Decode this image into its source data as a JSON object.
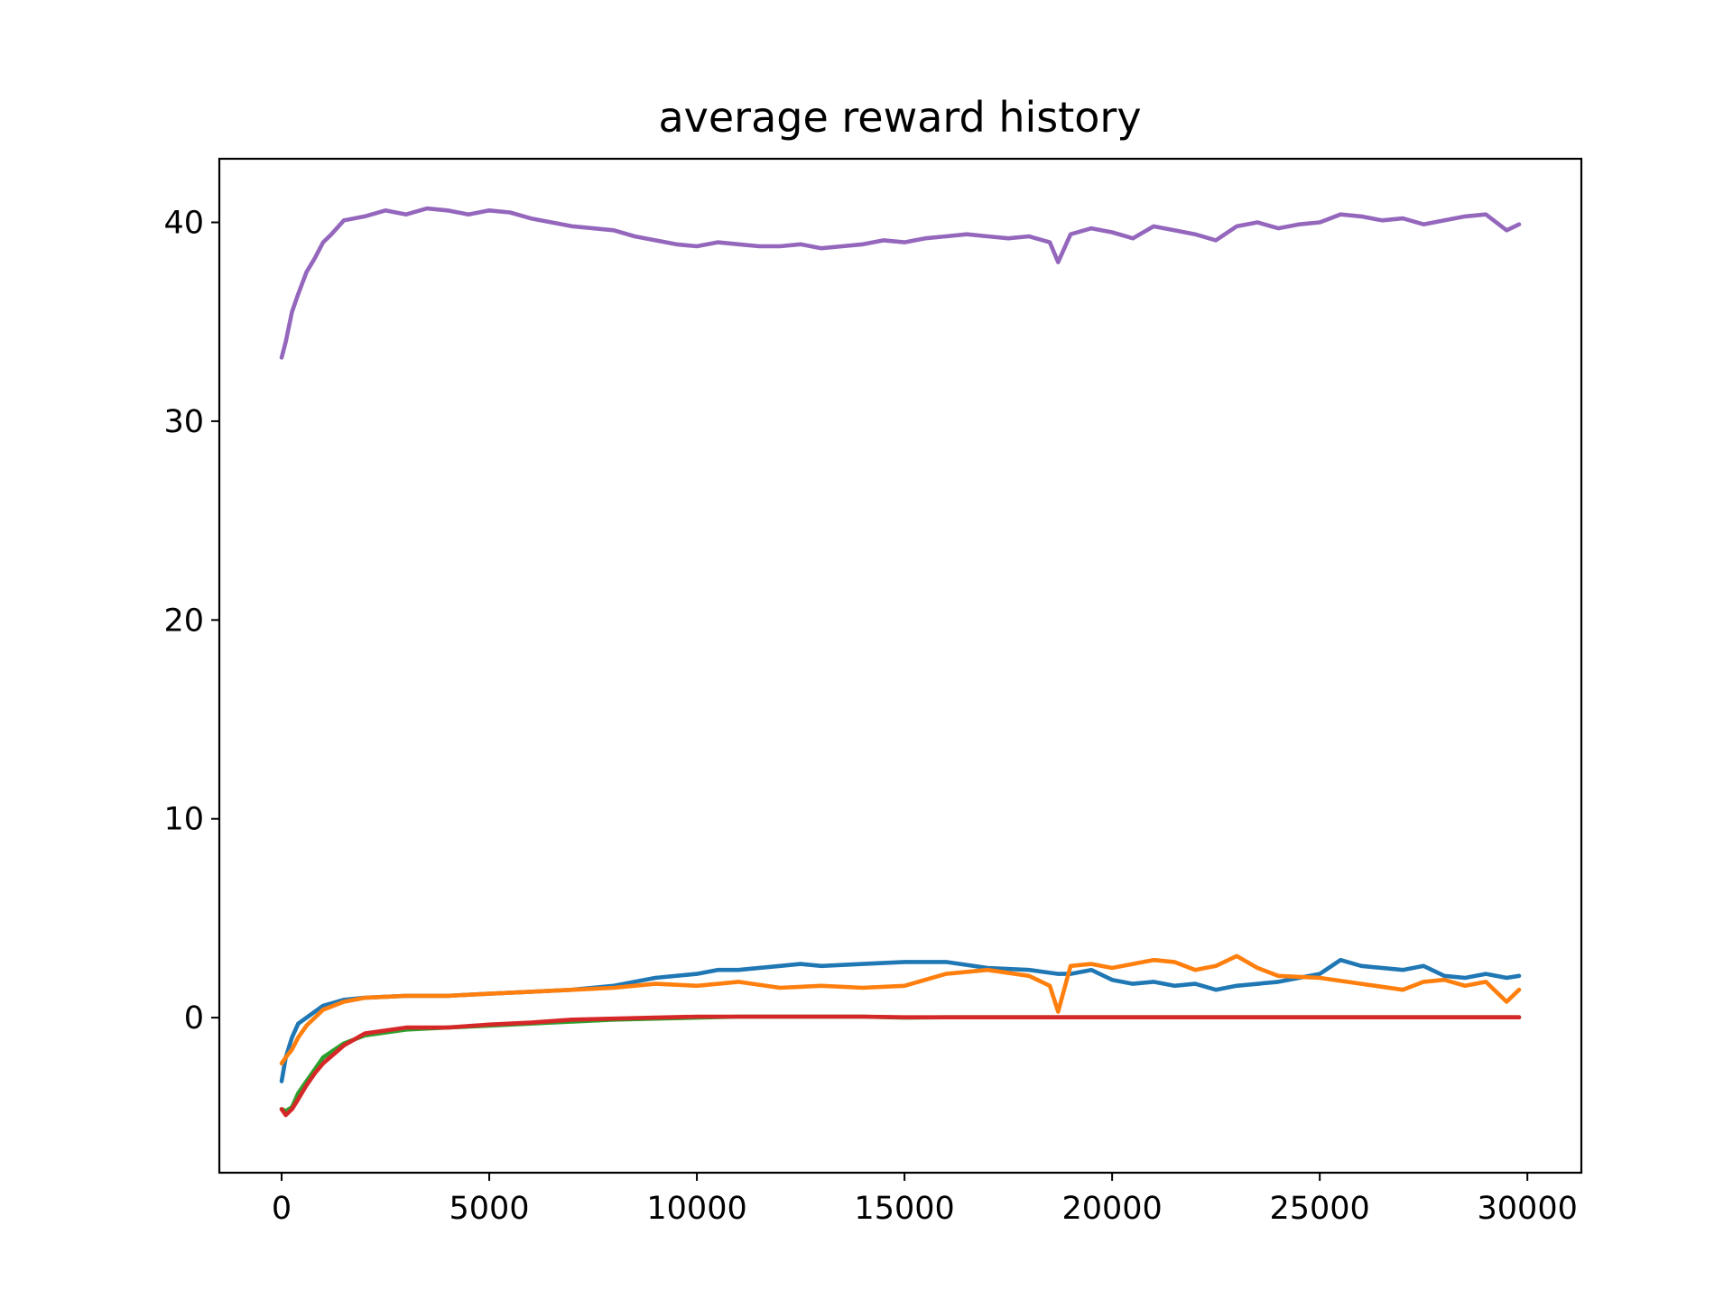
{
  "chart_data": {
    "type": "line",
    "title": "average reward history",
    "xlabel": "",
    "ylabel": "",
    "xlim": [
      -1500,
      31300
    ],
    "ylim": [
      -7.8,
      43.2
    ],
    "xticks": [
      0,
      5000,
      10000,
      15000,
      20000,
      25000,
      30000
    ],
    "xtick_labels": [
      "0",
      "5000",
      "10000",
      "15000",
      "20000",
      "25000",
      "30000"
    ],
    "yticks": [
      0,
      10,
      20,
      30,
      40
    ],
    "ytick_labels": [
      "0",
      "10",
      "20",
      "30",
      "40"
    ],
    "grid": false,
    "legend": "none",
    "series": [
      {
        "color": "#9467bd",
        "x": [
          0,
          100,
          250,
          400,
          600,
          800,
          1000,
          1200,
          1500,
          2000,
          2500,
          3000,
          3500,
          4000,
          4500,
          5000,
          5500,
          6000,
          6500,
          7000,
          7500,
          8000,
          8500,
          9000,
          9500,
          10000,
          10500,
          11000,
          11500,
          12000,
          12500,
          13000,
          13500,
          14000,
          14500,
          15000,
          15500,
          16000,
          16500,
          17000,
          17500,
          18000,
          18500,
          18700,
          19000,
          19500,
          20000,
          20500,
          21000,
          21500,
          22000,
          22500,
          23000,
          23500,
          24000,
          24500,
          25000,
          25500,
          26000,
          26500,
          27000,
          27500,
          28000,
          28500,
          29000,
          29500,
          29800
        ],
        "values": [
          33.2,
          34.0,
          35.5,
          36.4,
          37.5,
          38.2,
          39.0,
          39.4,
          40.1,
          40.3,
          40.6,
          40.4,
          40.7,
          40.6,
          40.4,
          40.6,
          40.5,
          40.2,
          40.0,
          39.8,
          39.7,
          39.6,
          39.3,
          39.1,
          38.9,
          38.8,
          39.0,
          38.9,
          38.8,
          38.8,
          38.9,
          38.7,
          38.8,
          38.9,
          39.1,
          39.0,
          39.2,
          39.3,
          39.4,
          39.3,
          39.2,
          39.3,
          39.0,
          38.0,
          39.4,
          39.7,
          39.5,
          39.2,
          39.8,
          39.6,
          39.4,
          39.1,
          39.8,
          40.0,
          39.7,
          39.9,
          40.0,
          40.4,
          40.3,
          40.1,
          40.2,
          39.9,
          40.1,
          40.3,
          40.4,
          39.6,
          39.9
        ]
      },
      {
        "color": "#1f77b4",
        "x": [
          0,
          100,
          250,
          400,
          600,
          800,
          1000,
          1500,
          2000,
          3000,
          4000,
          5000,
          6000,
          7000,
          8000,
          9000,
          10000,
          10500,
          11000,
          12000,
          12500,
          13000,
          14000,
          15000,
          16000,
          17000,
          18000,
          18700,
          19000,
          19500,
          20000,
          20500,
          21000,
          21500,
          22000,
          22500,
          23000,
          24000,
          25000,
          25500,
          26000,
          27000,
          27500,
          28000,
          28500,
          29000,
          29500,
          29800
        ],
        "values": [
          -3.2,
          -2.0,
          -1.0,
          -0.3,
          0.0,
          0.3,
          0.6,
          0.9,
          1.0,
          1.1,
          1.1,
          1.2,
          1.3,
          1.4,
          1.6,
          2.0,
          2.2,
          2.4,
          2.4,
          2.6,
          2.7,
          2.6,
          2.7,
          2.8,
          2.8,
          2.5,
          2.4,
          2.2,
          2.2,
          2.4,
          1.9,
          1.7,
          1.8,
          1.6,
          1.7,
          1.4,
          1.6,
          1.8,
          2.2,
          2.9,
          2.6,
          2.4,
          2.6,
          2.1,
          2.0,
          2.2,
          2.0,
          2.1
        ]
      },
      {
        "color": "#ff7f0e",
        "x": [
          0,
          100,
          250,
          400,
          600,
          800,
          1000,
          1500,
          2000,
          3000,
          4000,
          5000,
          6000,
          7000,
          8000,
          9000,
          10000,
          11000,
          12000,
          13000,
          14000,
          15000,
          16000,
          17000,
          18000,
          18500,
          18700,
          19000,
          19500,
          20000,
          21000,
          21500,
          22000,
          22500,
          23000,
          23500,
          24000,
          25000,
          26000,
          27000,
          27500,
          28000,
          28500,
          29000,
          29500,
          29800
        ],
        "values": [
          -2.3,
          -2.0,
          -1.6,
          -1.0,
          -0.4,
          0.0,
          0.4,
          0.8,
          1.0,
          1.1,
          1.1,
          1.2,
          1.3,
          1.4,
          1.5,
          1.7,
          1.6,
          1.8,
          1.5,
          1.6,
          1.5,
          1.6,
          2.2,
          2.4,
          2.1,
          1.6,
          0.3,
          2.6,
          2.7,
          2.5,
          2.9,
          2.8,
          2.4,
          2.6,
          3.1,
          2.5,
          2.1,
          2.0,
          1.7,
          1.4,
          1.8,
          1.9,
          1.6,
          1.8,
          0.8,
          1.4
        ]
      },
      {
        "color": "#2ca02c",
        "x": [
          0,
          100,
          250,
          400,
          600,
          800,
          1000,
          1500,
          2000,
          3000,
          4000,
          5000,
          6000,
          7000,
          8000,
          9000,
          10000,
          11000,
          12000,
          13000,
          14000,
          15000,
          16000,
          17000,
          18000,
          19000,
          20000,
          22000,
          24000,
          26000,
          28000,
          29800
        ],
        "values": [
          -4.6,
          -4.7,
          -4.5,
          -3.8,
          -3.2,
          -2.6,
          -2.0,
          -1.3,
          -0.9,
          -0.6,
          -0.5,
          -0.4,
          -0.3,
          -0.2,
          -0.1,
          -0.05,
          0.0,
          0.05,
          0.05,
          0.05,
          0.05,
          0.0,
          0.02,
          0.02,
          0.02,
          0.02,
          0.02,
          0.02,
          0.02,
          0.02,
          0.02,
          0.02
        ]
      },
      {
        "color": "#d62728",
        "x": [
          0,
          100,
          250,
          400,
          600,
          800,
          1000,
          1500,
          2000,
          3000,
          4000,
          5000,
          6000,
          7000,
          8000,
          9000,
          10000,
          11000,
          12000,
          13000,
          14000,
          15000,
          16000,
          17000,
          18000,
          19000,
          20000,
          22000,
          24000,
          26000,
          28000,
          29800
        ],
        "values": [
          -4.6,
          -4.9,
          -4.6,
          -4.1,
          -3.4,
          -2.8,
          -2.3,
          -1.4,
          -0.8,
          -0.5,
          -0.5,
          -0.35,
          -0.25,
          -0.1,
          -0.05,
          0.0,
          0.05,
          0.05,
          0.05,
          0.05,
          0.05,
          0.02,
          0.02,
          0.02,
          0.02,
          0.02,
          0.02,
          0.02,
          0.02,
          0.02,
          0.02,
          0.02
        ]
      }
    ]
  }
}
